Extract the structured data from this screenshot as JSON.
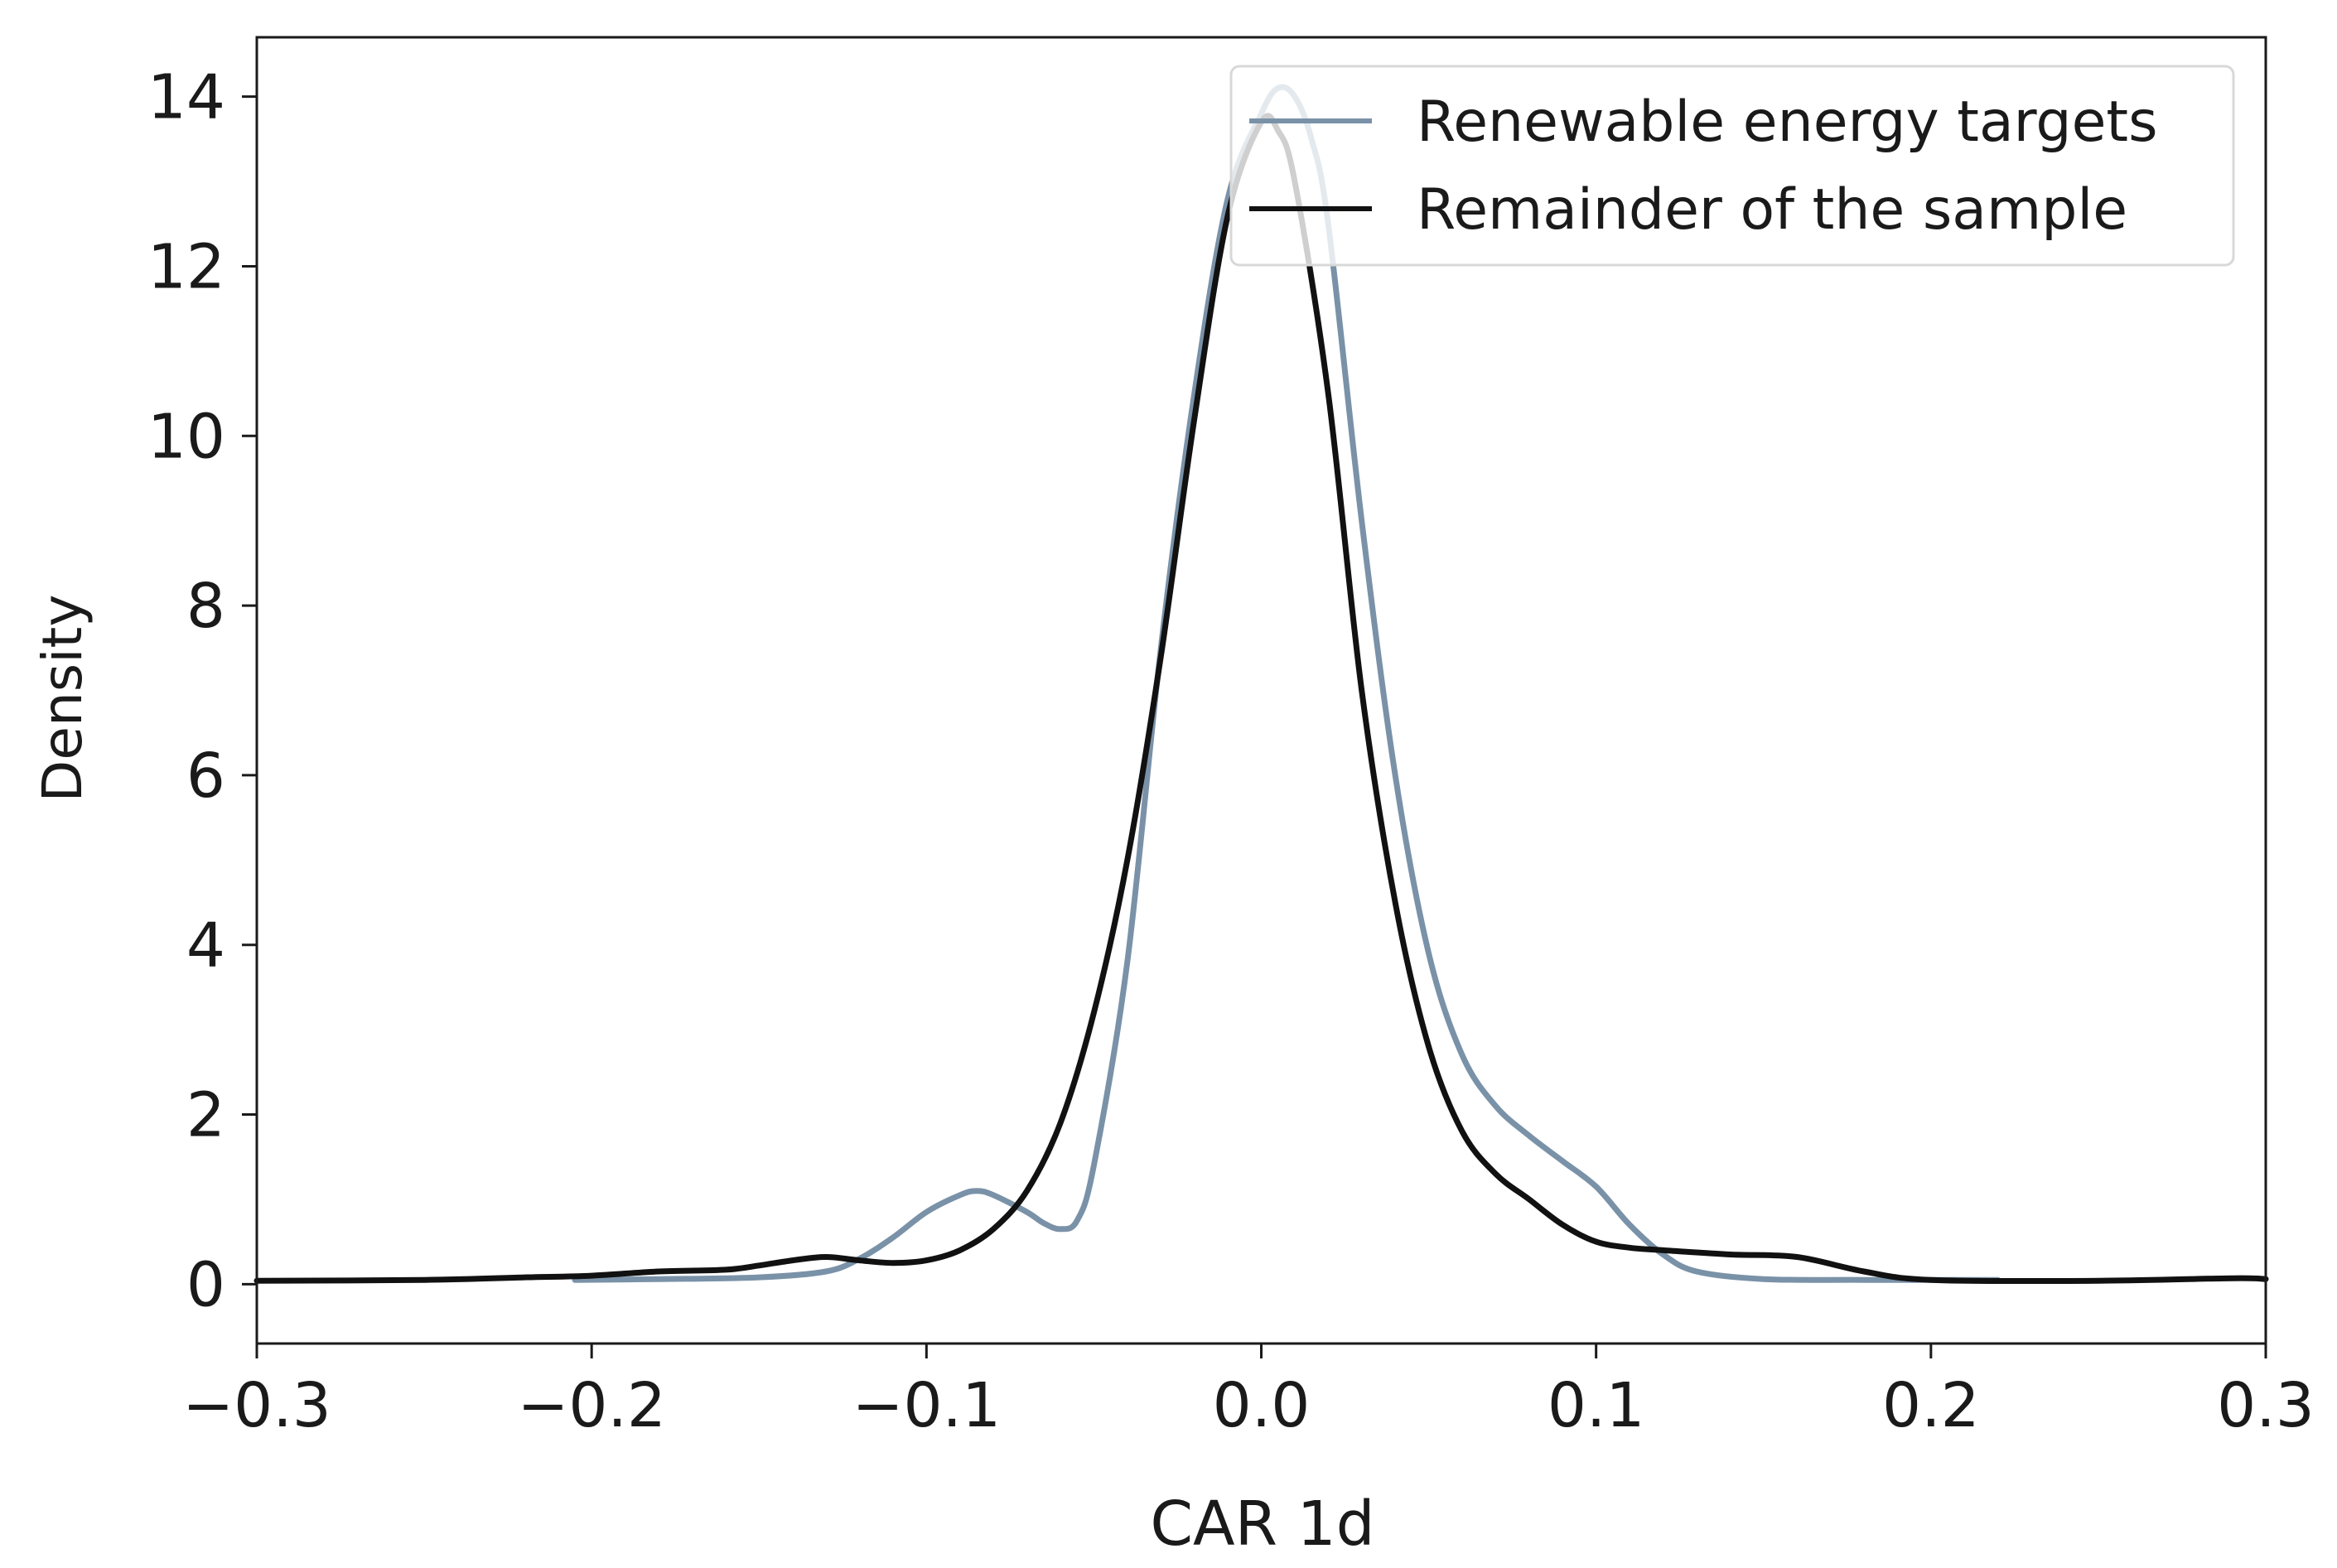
{
  "chart_data": {
    "type": "line",
    "title": "",
    "xlabel": "CAR 1d",
    "ylabel": "Density",
    "xlim": [
      -0.3,
      0.3
    ],
    "ylim": [
      -0.7,
      14.7
    ],
    "x_ticks": [
      -0.3,
      -0.2,
      -0.1,
      0.0,
      0.1,
      0.2,
      0.3
    ],
    "x_tick_labels": [
      "−0.3",
      "−0.2",
      "−0.1",
      "0.0",
      "0.1",
      "0.2",
      "0.3"
    ],
    "y_ticks": [
      0,
      2,
      4,
      6,
      8,
      10,
      12,
      14
    ],
    "y_tick_labels": [
      "0",
      "2",
      "4",
      "6",
      "8",
      "10",
      "12",
      "14"
    ],
    "grid": false,
    "legend_position": "top-right",
    "series": [
      {
        "name": "Renewable energy targets",
        "color": "#7a92a8",
        "x": [
          -0.205,
          -0.18,
          -0.15,
          -0.13,
          -0.12,
          -0.11,
          -0.1,
          -0.09,
          -0.085,
          -0.08,
          -0.07,
          -0.065,
          -0.06,
          -0.055,
          -0.05,
          -0.04,
          -0.03,
          -0.02,
          -0.01,
          0.0,
          0.005,
          0.01,
          0.015,
          0.02,
          0.03,
          0.04,
          0.05,
          0.06,
          0.07,
          0.08,
          0.09,
          0.1,
          0.11,
          0.12,
          0.13,
          0.15,
          0.18,
          0.22
        ],
        "y": [
          0.05,
          0.06,
          0.08,
          0.15,
          0.3,
          0.55,
          0.85,
          1.05,
          1.1,
          1.05,
          0.85,
          0.72,
          0.65,
          0.75,
          1.4,
          3.8,
          7.5,
          10.5,
          12.8,
          13.8,
          14.1,
          14.0,
          13.5,
          12.5,
          9.0,
          6.0,
          3.9,
          2.7,
          2.1,
          1.75,
          1.45,
          1.15,
          0.7,
          0.35,
          0.15,
          0.06,
          0.05,
          0.05
        ]
      },
      {
        "name": "Remainder of the sample",
        "color": "#111111",
        "x": [
          -0.3,
          -0.25,
          -0.22,
          -0.2,
          -0.18,
          -0.16,
          -0.15,
          -0.14,
          -0.13,
          -0.12,
          -0.11,
          -0.1,
          -0.09,
          -0.08,
          -0.07,
          -0.06,
          -0.05,
          -0.04,
          -0.03,
          -0.02,
          -0.01,
          0.0,
          0.005,
          0.01,
          0.02,
          0.03,
          0.04,
          0.05,
          0.06,
          0.07,
          0.08,
          0.09,
          0.1,
          0.11,
          0.12,
          0.14,
          0.16,
          0.18,
          0.2,
          0.25,
          0.29,
          0.3
        ],
        "y": [
          0.04,
          0.05,
          0.08,
          0.1,
          0.15,
          0.17,
          0.22,
          0.28,
          0.32,
          0.28,
          0.25,
          0.28,
          0.4,
          0.65,
          1.1,
          1.9,
          3.2,
          5.0,
          7.4,
          10.2,
          12.6,
          13.7,
          13.6,
          13.0,
          10.5,
          7.0,
          4.5,
          2.8,
          1.8,
          1.3,
          1.0,
          0.7,
          0.5,
          0.43,
          0.4,
          0.35,
          0.32,
          0.15,
          0.05,
          0.04,
          0.07,
          0.06
        ]
      }
    ]
  }
}
